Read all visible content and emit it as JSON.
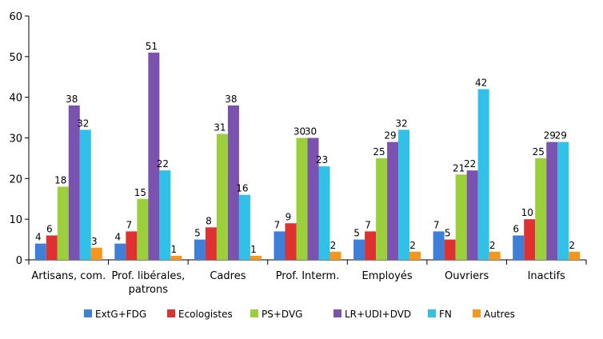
{
  "chart_data": {
    "type": "bar",
    "categories": [
      [
        "Artisans, com."
      ],
      [
        "Prof. libérales,",
        "patrons"
      ],
      [
        "Cadres"
      ],
      [
        "Prof. Interm."
      ],
      [
        "Employés"
      ],
      [
        "Ouvriers"
      ],
      [
        "Inactifs"
      ]
    ],
    "series": [
      {
        "name": "ExtG+FDG",
        "color": "#3d7fd9",
        "values": [
          4,
          4,
          5,
          7,
          5,
          7,
          6
        ]
      },
      {
        "name": "Ecologistes",
        "color": "#e03131",
        "values": [
          6,
          7,
          8,
          9,
          7,
          5,
          10
        ]
      },
      {
        "name": "PS+DVG",
        "color": "#9ccf3c",
        "values": [
          18,
          15,
          31,
          30,
          25,
          21,
          25
        ]
      },
      {
        "name": "LR+UDI+DVD",
        "color": "#7b52b0",
        "values": [
          38,
          51,
          38,
          30,
          29,
          22,
          29
        ]
      },
      {
        "name": "FN",
        "color": "#31c0e8",
        "values": [
          32,
          22,
          16,
          23,
          32,
          42,
          29
        ]
      },
      {
        "name": "Autres",
        "color": "#f7961e",
        "values": [
          3,
          1,
          1,
          2,
          2,
          2,
          2
        ]
      }
    ],
    "ylim": [
      0,
      60
    ],
    "yticks": [
      0,
      10,
      20,
      30,
      40,
      50,
      60
    ],
    "grid": false,
    "legend_position": "bottom",
    "title": "",
    "xlabel": "",
    "ylabel": ""
  }
}
